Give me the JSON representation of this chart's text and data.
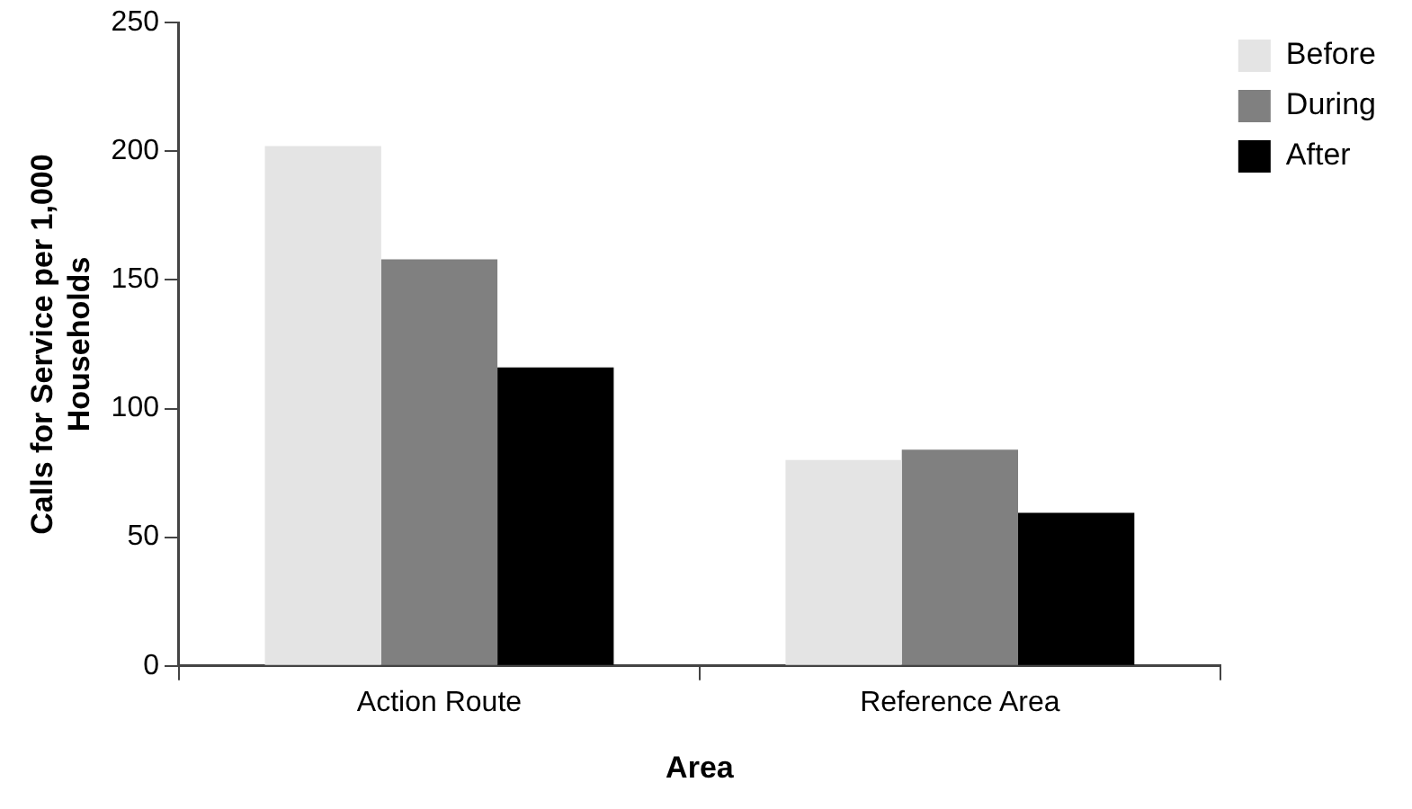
{
  "chart_data": {
    "type": "bar",
    "xlabel": "Area",
    "ylabel": "Calls for Service per 1,000 Households",
    "categories": [
      "Action Route",
      "Reference Area"
    ],
    "series": [
      {
        "name": "Before",
        "color": "#e4e4e4",
        "values": [
          202,
          80
        ]
      },
      {
        "name": "During",
        "color": "#808080",
        "values": [
          158,
          84
        ]
      },
      {
        "name": "After",
        "color": "#000000",
        "values": [
          116,
          59.5
        ]
      }
    ],
    "ylim": [
      0,
      250
    ],
    "yticks": [
      0,
      50,
      100,
      150,
      200,
      250
    ],
    "grid": false,
    "legend": "top right"
  }
}
